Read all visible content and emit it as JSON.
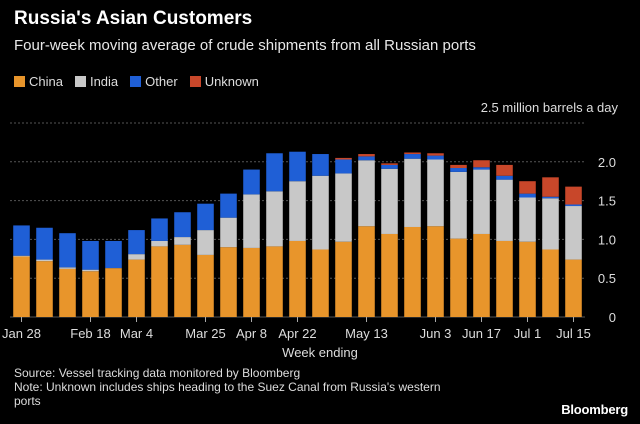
{
  "header": {
    "title": "Russia's Asian Customers",
    "subtitle": "Four-week moving average of crude shipments from all Russian ports"
  },
  "legend": [
    {
      "label": "China",
      "color": "#e8952b"
    },
    {
      "label": "India",
      "color": "#c8c8c8"
    },
    {
      "label": "Other",
      "color": "#1f5fd6"
    },
    {
      "label": "Unknown",
      "color": "#c8472a"
    }
  ],
  "footer": {
    "source": "Source: Vessel tracking data monitored by Bloomberg",
    "note_line1": "Note: Unknown includes ships heading to the Suez Canal from Russia's western",
    "note_line2": "ports",
    "brand": "Bloomberg"
  },
  "chart_data": {
    "type": "bar",
    "stacked": true,
    "unit_label": "2.5 million barrels a day",
    "xlabel": "Week ending",
    "ylim": [
      0,
      2.5
    ],
    "yticks": [
      "0",
      "0.5",
      "1.0",
      "1.5",
      "2.0"
    ],
    "ytick_values": [
      0,
      0.5,
      1.0,
      1.5,
      2.0
    ],
    "x_tick_labels": [
      {
        "index": 0,
        "label": "Jan 28"
      },
      {
        "index": 3,
        "label": "Feb 18"
      },
      {
        "index": 5,
        "label": "Mar 4"
      },
      {
        "index": 8,
        "label": "Mar 25"
      },
      {
        "index": 10,
        "label": "Apr 8"
      },
      {
        "index": 12,
        "label": "Apr 22"
      },
      {
        "index": 15,
        "label": "May 13"
      },
      {
        "index": 18,
        "label": "Jun 3"
      },
      {
        "index": 20,
        "label": "Jun 17"
      },
      {
        "index": 22,
        "label": "Jul 1"
      },
      {
        "index": 24,
        "label": "Jul 15"
      }
    ],
    "series": [
      {
        "name": "China",
        "color": "#e8952b",
        "values": [
          0.78,
          0.72,
          0.62,
          0.59,
          0.63,
          0.74,
          0.91,
          0.93,
          0.8,
          0.9,
          0.89,
          0.91,
          0.98,
          0.87,
          0.97,
          1.17,
          1.07,
          1.16,
          1.17,
          1.01,
          1.07,
          0.98,
          0.97,
          0.87,
          0.74
        ]
      },
      {
        "name": "India",
        "color": "#c8c8c8",
        "values": [
          0.01,
          0.02,
          0.02,
          0.02,
          0.0,
          0.07,
          0.07,
          0.1,
          0.32,
          0.38,
          0.69,
          0.71,
          0.77,
          0.95,
          0.88,
          0.85,
          0.84,
          0.88,
          0.86,
          0.86,
          0.83,
          0.79,
          0.57,
          0.66,
          0.69
        ]
      },
      {
        "name": "Other",
        "color": "#1f5fd6",
        "values": [
          0.39,
          0.41,
          0.44,
          0.37,
          0.35,
          0.31,
          0.29,
          0.32,
          0.34,
          0.31,
          0.32,
          0.49,
          0.38,
          0.28,
          0.18,
          0.05,
          0.05,
          0.06,
          0.05,
          0.05,
          0.03,
          0.05,
          0.05,
          0.02,
          0.02
        ]
      },
      {
        "name": "Unknown",
        "color": "#c8472a",
        "values": [
          0,
          0,
          0,
          0,
          0,
          0,
          0,
          0,
          0,
          0,
          0,
          0,
          0,
          0,
          0.02,
          0.03,
          0.02,
          0.02,
          0.03,
          0.04,
          0.09,
          0.14,
          0.16,
          0.25,
          0.23
        ]
      }
    ]
  }
}
